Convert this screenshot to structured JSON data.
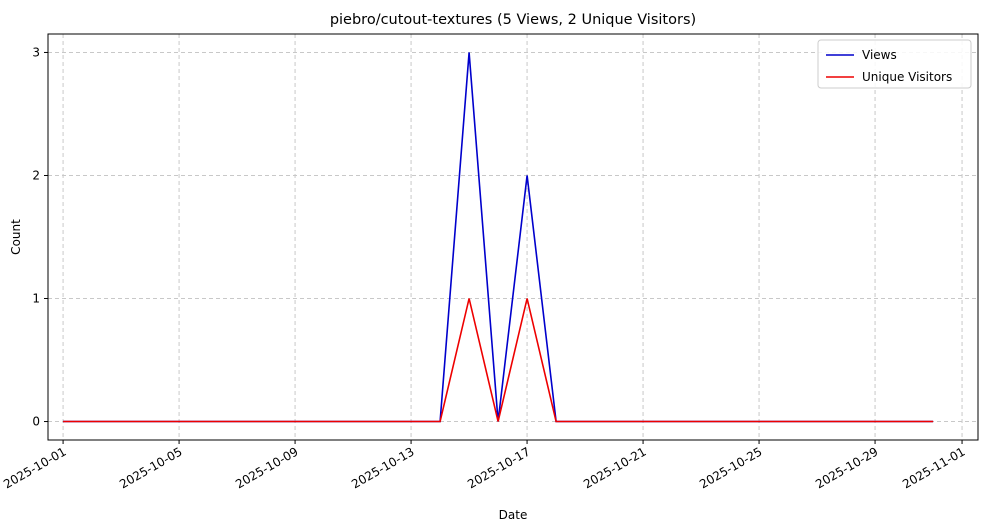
{
  "chart_data": {
    "type": "line",
    "title": "piebro/cutout-textures (5 Views, 2 Unique Visitors)",
    "xlabel": "Date",
    "ylabel": "Count",
    "x": [
      "2025-10-01",
      "2025-10-02",
      "2025-10-03",
      "2025-10-04",
      "2025-10-05",
      "2025-10-06",
      "2025-10-07",
      "2025-10-08",
      "2025-10-09",
      "2025-10-10",
      "2025-10-11",
      "2025-10-12",
      "2025-10-13",
      "2025-10-14",
      "2025-10-15",
      "2025-10-16",
      "2025-10-17",
      "2025-10-18",
      "2025-10-19",
      "2025-10-20",
      "2025-10-21",
      "2025-10-22",
      "2025-10-23",
      "2025-10-24",
      "2025-10-25",
      "2025-10-26",
      "2025-10-27",
      "2025-10-28",
      "2025-10-29",
      "2025-10-30",
      "2025-10-31"
    ],
    "series": [
      {
        "name": "Views",
        "color": "#0000cc",
        "values": [
          0,
          0,
          0,
          0,
          0,
          0,
          0,
          0,
          0,
          0,
          0,
          0,
          0,
          0,
          3,
          0,
          2,
          0,
          0,
          0,
          0,
          0,
          0,
          0,
          0,
          0,
          0,
          0,
          0,
          0,
          0
        ]
      },
      {
        "name": "Unique Visitors",
        "color": "#ee0000",
        "values": [
          0,
          0,
          0,
          0,
          0,
          0,
          0,
          0,
          0,
          0,
          0,
          0,
          0,
          0,
          1,
          0,
          1,
          0,
          0,
          0,
          0,
          0,
          0,
          0,
          0,
          0,
          0,
          0,
          0,
          0,
          0
        ]
      }
    ],
    "xticks": [
      "2025-10-01",
      "2025-10-05",
      "2025-10-09",
      "2025-10-13",
      "2025-10-17",
      "2025-10-21",
      "2025-10-25",
      "2025-10-29",
      "2025-11-01"
    ],
    "yticks": [
      0,
      1,
      2,
      3
    ],
    "xlim": [
      "2025-09-30",
      "2025-11-01"
    ],
    "ylim": [
      -0.15,
      3.15
    ],
    "grid": true,
    "legend": "top-right"
  }
}
